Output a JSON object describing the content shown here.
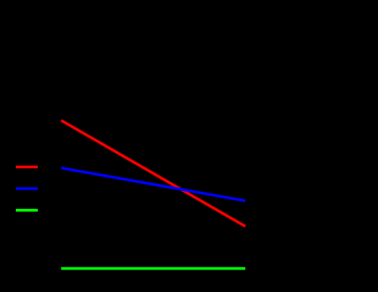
{
  "chart_data": {
    "type": "line",
    "background": "#000000",
    "title": "",
    "xlabel": "",
    "ylabel": "",
    "x": [
      0,
      1
    ],
    "ylim": [
      0,
      1
    ],
    "grid": false,
    "legend": "left",
    "series": [
      {
        "color": "#ff0000",
        "values": [
          0.83,
          0.25
        ]
      },
      {
        "color": "#0000ff",
        "values": [
          0.57,
          0.39
        ]
      },
      {
        "color": "#00ff00",
        "values": [
          0.02,
          0.02
        ]
      }
    ]
  }
}
